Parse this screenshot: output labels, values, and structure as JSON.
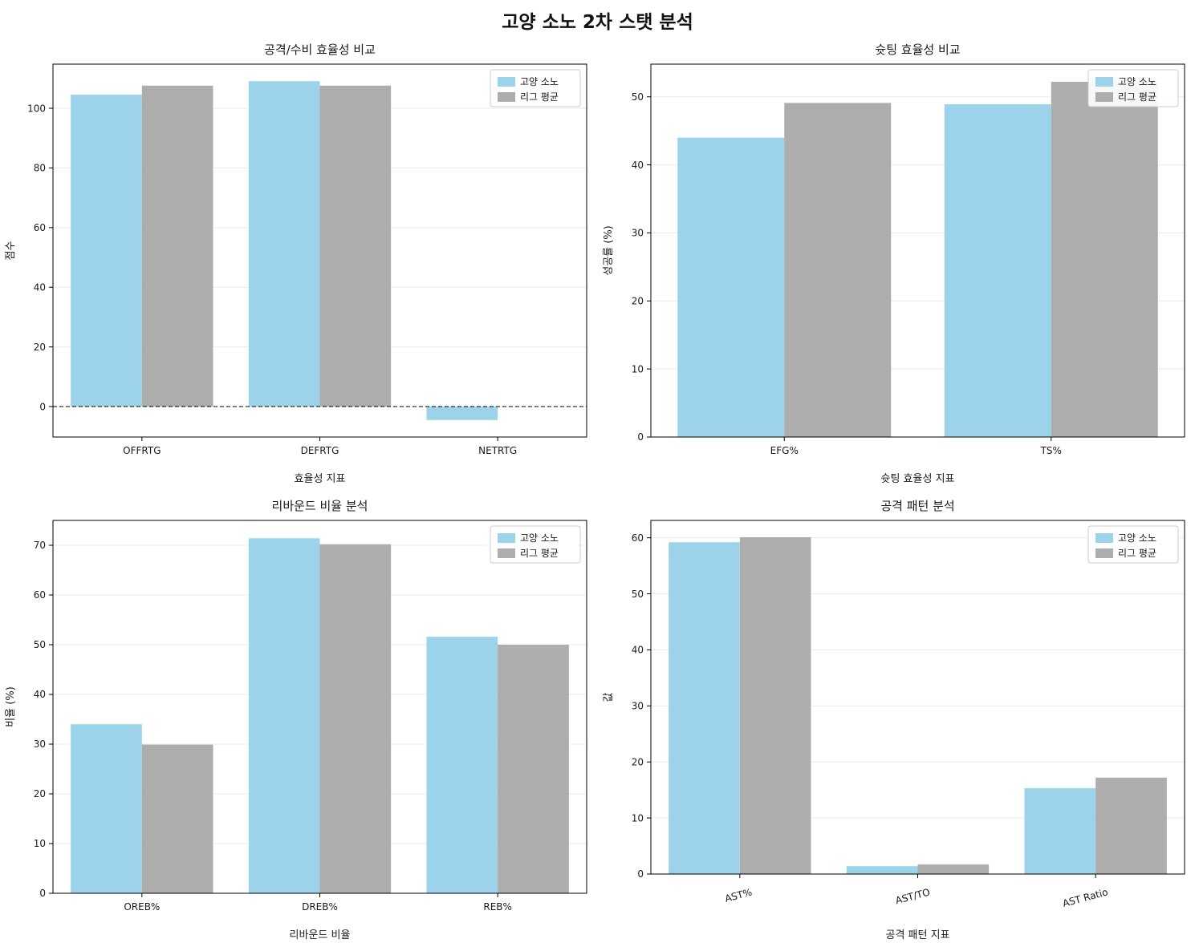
{
  "title": "고양 소노 2차 스탯 분석",
  "legend_labels": [
    "고양 소노",
    "리그 평균"
  ],
  "colors": {
    "series": [
      "#9CD3EA",
      "#ADADAD"
    ],
    "grid": "#ebebeb",
    "axis": "#000000",
    "legend_border": "#cccccc",
    "background": "#ffffff"
  },
  "chart_data": [
    {
      "type": "bar",
      "title": "공격/수비 효율성 비교",
      "xlabel": "효율성 지표",
      "ylabel": "점수",
      "categories": [
        "OFFRTG",
        "DEFRTG",
        "NETRTG"
      ],
      "series": [
        {
          "name": "고양 소노",
          "values": [
            104.6,
            109.1,
            -4.5
          ]
        },
        {
          "name": "리그 평균",
          "values": [
            107.6,
            107.6,
            0.0
          ]
        }
      ],
      "ylim": [
        -10.2,
        114.8
      ],
      "yticks": [
        0,
        20,
        40,
        60,
        80,
        100
      ],
      "zero_line": true,
      "rotate_xticks": false,
      "grid": true,
      "legend_position": "top-right"
    },
    {
      "type": "bar",
      "title": "슛팅 효율성 비교",
      "xlabel": "슛팅 효율성 지표",
      "ylabel": "성공률 (%)",
      "categories": [
        "EFG%",
        "TS%"
      ],
      "series": [
        {
          "name": "고양 소노",
          "values": [
            44.0,
            48.9
          ]
        },
        {
          "name": "리그 평균",
          "values": [
            49.1,
            52.2
          ]
        }
      ],
      "ylim": [
        0,
        54.8
      ],
      "yticks": [
        0,
        10,
        20,
        30,
        40,
        50
      ],
      "zero_line": false,
      "rotate_xticks": false,
      "grid": true,
      "legend_position": "top-left"
    },
    {
      "type": "bar",
      "title": "리바운드 비율 분석",
      "xlabel": "리바운드 비율",
      "ylabel": "비율 (%)",
      "categories": [
        "OREB%",
        "DREB%",
        "REB%"
      ],
      "series": [
        {
          "name": "고양 소노",
          "values": [
            34.0,
            71.4,
            51.6
          ]
        },
        {
          "name": "리그 평균",
          "values": [
            29.9,
            70.2,
            50.0
          ]
        }
      ],
      "ylim": [
        0,
        75.0
      ],
      "yticks": [
        0,
        10,
        20,
        30,
        40,
        50,
        60,
        70
      ],
      "zero_line": false,
      "rotate_xticks": false,
      "grid": true,
      "legend_position": "top-right"
    },
    {
      "type": "bar",
      "title": "공격 패턴 분석",
      "xlabel": "공격 패턴 지표",
      "ylabel": "값",
      "categories": [
        "AST%",
        "AST/TO",
        "AST Ratio"
      ],
      "series": [
        {
          "name": "고양 소노",
          "values": [
            59.2,
            1.4,
            15.3
          ]
        },
        {
          "name": "리그 평균",
          "values": [
            60.1,
            1.7,
            17.2
          ]
        }
      ],
      "ylim": [
        0,
        63.1
      ],
      "yticks": [
        0,
        10,
        20,
        30,
        40,
        50,
        60
      ],
      "zero_line": false,
      "rotate_xticks": true,
      "grid": true,
      "legend_position": "top-right"
    }
  ]
}
